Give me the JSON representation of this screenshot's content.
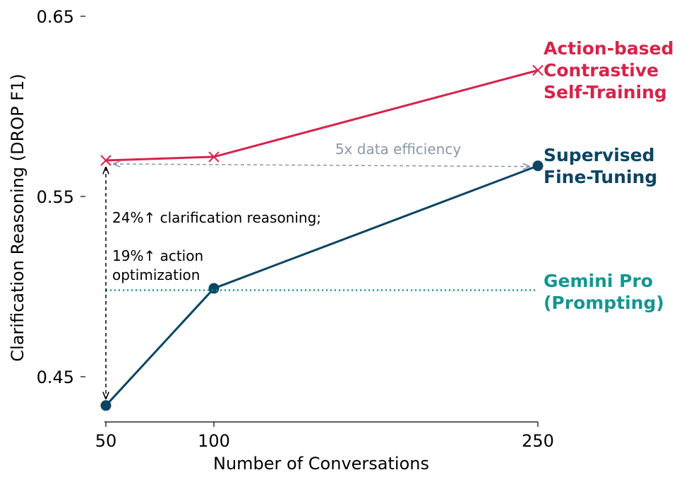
{
  "chart_data": {
    "type": "line",
    "x": [
      50,
      100,
      250
    ],
    "xticks": [
      "50",
      "100",
      "250"
    ],
    "yticks": [
      "0.45",
      "0.55",
      "0.65"
    ],
    "ylim": [
      0.43,
      0.65
    ],
    "xlabel": "Number of Conversations",
    "ylabel": "Clarification Reasoning (DROP F1)",
    "series": [
      {
        "name": "Action-based Contrastive Self-Training",
        "label_lines": [
          "Action-based",
          "Contrastive",
          "Self-Training"
        ],
        "color": "#d6234a",
        "marker": "x",
        "values": [
          0.57,
          0.572,
          0.62
        ]
      },
      {
        "name": "Supervised Fine-Tuning",
        "label_lines": [
          "Supervised",
          "Fine-Tuning"
        ],
        "color": "#0b4563",
        "marker": "circle",
        "values": [
          0.434,
          0.499,
          0.567
        ]
      },
      {
        "name": "Gemini Pro (Prompting)",
        "label_lines": [
          "Gemini Pro",
          "(Prompting)"
        ],
        "color": "#15958f",
        "marker": "none",
        "style": "dotted",
        "values": [
          0.498,
          0.498,
          0.498
        ]
      }
    ],
    "annotations": {
      "efficiency": "5x data efficiency",
      "clarification": "24%↑ clarification reasoning;",
      "action_line1": "19%↑ action",
      "action_line2": "optimization"
    }
  }
}
